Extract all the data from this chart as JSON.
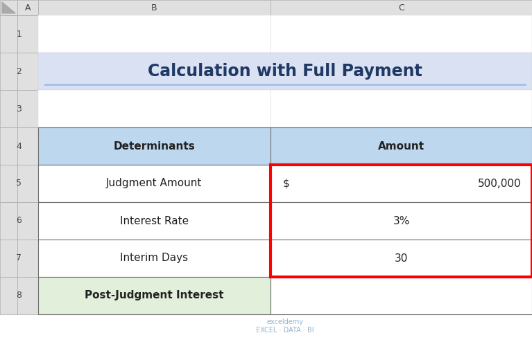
{
  "title": "Calculation with Full Payment",
  "title_color": "#1F3864",
  "title_fontsize": 17,
  "underline_color": "#9DC3E6",
  "header_row": [
    "Determinants",
    "Amount"
  ],
  "rows": [
    [
      "Judgment Amount",
      "500,000"
    ],
    [
      "Interest Rate",
      "3%"
    ],
    [
      "Interim Days",
      "30"
    ],
    [
      "Post-Judgment Interest",
      ""
    ]
  ],
  "header_bg": "#BDD7EE",
  "last_row_bg": "#E2EFDA",
  "data_bg": "#FFFFFF",
  "title_bg": "#D9E1F2",
  "blank_bg": "#FFFFFF",
  "grid_color": "#70706F",
  "thin_grid": "#D4D4D4",
  "red_border_color": "#FF0000",
  "excel_header_bg": "#E0E0E0",
  "excel_header_border": "#AAAAAA",
  "watermark_text": "exceldemy\nEXCEL · DATA · BI",
  "watermark_color": "#7FA8C9"
}
